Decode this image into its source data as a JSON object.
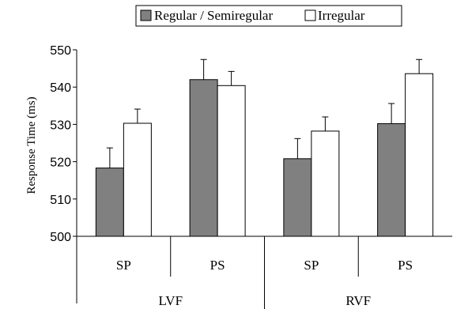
{
  "chart_data": {
    "type": "bar",
    "title": "",
    "xlabel": "",
    "ylabel": "Response Time (ms)",
    "ylim": [
      500,
      550
    ],
    "yticks": [
      500,
      510,
      520,
      530,
      540,
      550
    ],
    "grid": false,
    "legend_position": "top",
    "categories": [
      "SP",
      "PS",
      "SP",
      "PS"
    ],
    "groups": [
      {
        "label": "LVF",
        "categories": [
          "SP",
          "PS"
        ]
      },
      {
        "label": "RVF",
        "categories": [
          "SP",
          "PS"
        ]
      }
    ],
    "series": [
      {
        "name": "Regular / Semiregular",
        "color": "#808080",
        "values": [
          518.3,
          542.0,
          520.8,
          530.2
        ],
        "errors": [
          5.4,
          5.4,
          5.4,
          5.4
        ]
      },
      {
        "name": "Irregular",
        "color": "#ffffff",
        "values": [
          530.3,
          540.4,
          528.2,
          543.6
        ],
        "errors": [
          3.8,
          3.8,
          3.8,
          3.8
        ]
      }
    ]
  }
}
